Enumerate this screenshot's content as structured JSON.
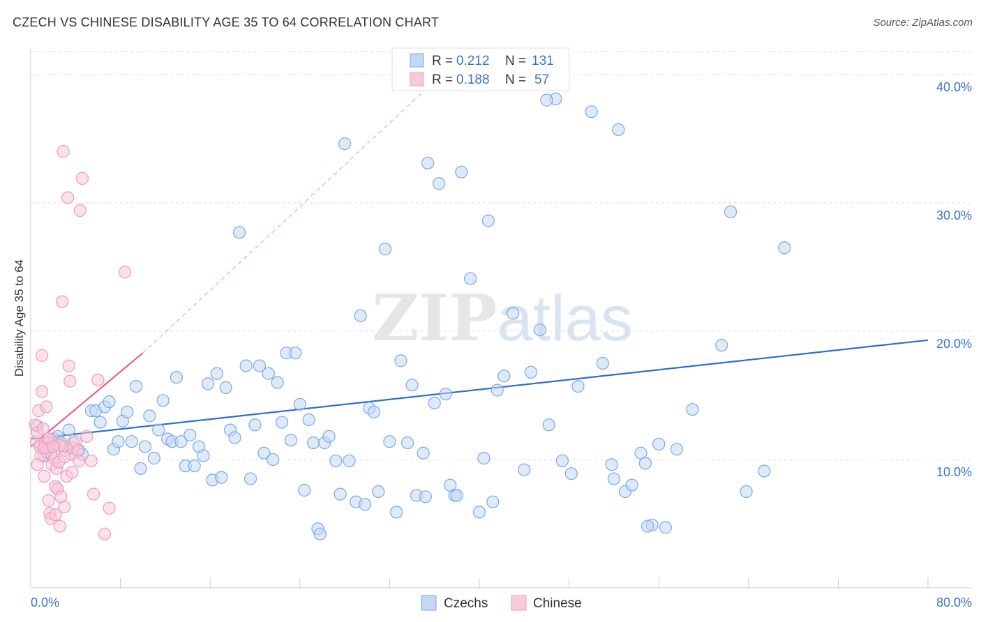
{
  "chart_data": {
    "type": "scatter",
    "title": "CZECH VS CHINESE DISABILITY AGE 35 TO 64 CORRELATION CHART",
    "source": "Source: ZipAtlas.com",
    "ylabel": "Disability Age 35 to 64",
    "xlabel": "",
    "x_tick_labels": [
      "0.0%",
      "80.0%"
    ],
    "y_tick_labels": [
      "10.0%",
      "20.0%",
      "30.0%",
      "40.0%"
    ],
    "y_tick_values": [
      10,
      20,
      30,
      40
    ],
    "xlim": [
      0,
      80
    ],
    "ylim": [
      0,
      42
    ],
    "grid": "horizontal dashed",
    "watermark": "ZIPatlas",
    "legend": {
      "placement": "top-center",
      "entries": [
        {
          "r_label": "R = ",
          "r_value": "0.212",
          "n_label": "N = ",
          "n_value": "131"
        },
        {
          "r_label": "R = ",
          "r_value": "0.188",
          "n_label": "N = ",
          "n_value": "57"
        }
      ]
    },
    "series": [
      {
        "name": "Czechs",
        "color": "#7aa8e3",
        "fill": "#c2d8f5",
        "trend_color": "#2f6fcf",
        "trend": {
          "x0": 0,
          "y0": 11.6,
          "x1": 80,
          "y1": 19.3
        },
        "points": [
          [
            0.6,
            12.6
          ],
          [
            0.9,
            11.2
          ],
          [
            1.2,
            10.3
          ],
          [
            1.6,
            10.9
          ],
          [
            1.8,
            10.4
          ],
          [
            2.1,
            11.6
          ],
          [
            2.4,
            11.8
          ],
          [
            2.7,
            11.3
          ],
          [
            3.1,
            10.7
          ],
          [
            3.4,
            12.3
          ],
          [
            3.8,
            11.3
          ],
          [
            4.3,
            10.7
          ],
          [
            4.6,
            10.4
          ],
          [
            5.4,
            13.8
          ],
          [
            5.8,
            13.8
          ],
          [
            6.2,
            12.9
          ],
          [
            6.6,
            14.1
          ],
          [
            7.0,
            14.5
          ],
          [
            7.4,
            10.8
          ],
          [
            7.8,
            11.4
          ],
          [
            8.2,
            13.0
          ],
          [
            8.6,
            13.7
          ],
          [
            9.0,
            11.4
          ],
          [
            9.4,
            15.7
          ],
          [
            9.8,
            9.3
          ],
          [
            10.2,
            11.0
          ],
          [
            10.6,
            13.4
          ],
          [
            11.0,
            10.1
          ],
          [
            11.4,
            12.3
          ],
          [
            11.8,
            14.6
          ],
          [
            12.2,
            11.6
          ],
          [
            12.6,
            11.4
          ],
          [
            13.0,
            16.4
          ],
          [
            13.4,
            11.4
          ],
          [
            13.8,
            9.5
          ],
          [
            14.2,
            11.9
          ],
          [
            14.6,
            9.5
          ],
          [
            15.0,
            11.0
          ],
          [
            15.4,
            10.3
          ],
          [
            15.8,
            15.9
          ],
          [
            16.2,
            8.4
          ],
          [
            16.6,
            16.7
          ],
          [
            17.0,
            8.6
          ],
          [
            17.4,
            15.6
          ],
          [
            17.8,
            12.3
          ],
          [
            18.2,
            11.7
          ],
          [
            18.6,
            27.7
          ],
          [
            19.2,
            17.3
          ],
          [
            19.6,
            8.5
          ],
          [
            20.0,
            12.7
          ],
          [
            20.4,
            17.3
          ],
          [
            20.8,
            10.5
          ],
          [
            21.2,
            16.7
          ],
          [
            21.6,
            10.0
          ],
          [
            22.0,
            16.0
          ],
          [
            22.4,
            12.9
          ],
          [
            22.8,
            18.3
          ],
          [
            23.2,
            11.5
          ],
          [
            23.6,
            18.3
          ],
          [
            24.0,
            14.3
          ],
          [
            24.4,
            7.6
          ],
          [
            24.8,
            13.1
          ],
          [
            25.2,
            11.3
          ],
          [
            25.6,
            4.6
          ],
          [
            26.2,
            11.3
          ],
          [
            26.6,
            11.8
          ],
          [
            27.2,
            9.9
          ],
          [
            27.6,
            7.3
          ],
          [
            28.0,
            34.6
          ],
          [
            28.4,
            9.9
          ],
          [
            29.0,
            6.7
          ],
          [
            29.4,
            21.2
          ],
          [
            29.8,
            6.5
          ],
          [
            30.2,
            14.0
          ],
          [
            30.6,
            13.7
          ],
          [
            31.0,
            7.5
          ],
          [
            31.6,
            26.4
          ],
          [
            32.0,
            11.4
          ],
          [
            32.6,
            5.9
          ],
          [
            33.0,
            17.7
          ],
          [
            33.6,
            11.3
          ],
          [
            34.0,
            15.8
          ],
          [
            34.4,
            7.2
          ],
          [
            35.0,
            10.5
          ],
          [
            35.4,
            33.1
          ],
          [
            36.0,
            14.4
          ],
          [
            36.4,
            31.5
          ],
          [
            37.0,
            15.1
          ],
          [
            37.4,
            8.0
          ],
          [
            37.8,
            7.2
          ],
          [
            38.4,
            32.4
          ],
          [
            39.2,
            24.1
          ],
          [
            40.0,
            5.9
          ],
          [
            40.4,
            10.1
          ],
          [
            40.8,
            28.6
          ],
          [
            41.2,
            6.7
          ],
          [
            41.6,
            15.4
          ],
          [
            42.2,
            16.5
          ],
          [
            43.0,
            21.4
          ],
          [
            44.0,
            9.2
          ],
          [
            44.6,
            16.8
          ],
          [
            45.4,
            20.1
          ],
          [
            46.2,
            12.7
          ],
          [
            46.8,
            38.1
          ],
          [
            47.4,
            9.9
          ],
          [
            48.2,
            8.9
          ],
          [
            48.8,
            15.7
          ],
          [
            50.0,
            37.1
          ],
          [
            51.0,
            17.5
          ],
          [
            51.8,
            9.6
          ],
          [
            52.4,
            35.7
          ],
          [
            53.0,
            7.5
          ],
          [
            53.6,
            8.0
          ],
          [
            54.4,
            10.5
          ],
          [
            54.8,
            9.7
          ],
          [
            55.4,
            4.9
          ],
          [
            56.0,
            11.2
          ],
          [
            56.6,
            4.7
          ],
          [
            57.6,
            10.8
          ],
          [
            59.0,
            13.9
          ],
          [
            61.6,
            18.9
          ],
          [
            62.4,
            29.3
          ],
          [
            63.8,
            7.5
          ],
          [
            65.4,
            9.1
          ],
          [
            67.2,
            26.5
          ],
          [
            46.0,
            38.0
          ],
          [
            52.0,
            8.5
          ],
          [
            55.0,
            4.8
          ],
          [
            35.2,
            7.1
          ],
          [
            38.0,
            7.2
          ],
          [
            25.8,
            4.2
          ]
        ]
      },
      {
        "name": "Chinese",
        "color": "#f09ab8",
        "fill": "#f8c9d9",
        "trend_color": "#e5608f",
        "trend": {
          "x0": 0,
          "y0": 11.0,
          "x1": 10,
          "y1": 18.3
        },
        "trend_extended": {
          "x0": 10,
          "y0": 18.3,
          "x1": 37.5,
          "y1": 40.7
        },
        "points": [
          [
            0.4,
            12.7
          ],
          [
            0.5,
            11.4
          ],
          [
            0.6,
            12.1
          ],
          [
            0.7,
            13.8
          ],
          [
            0.8,
            11.0
          ],
          [
            0.9,
            10.3
          ],
          [
            1.0,
            18.1
          ],
          [
            1.0,
            15.3
          ],
          [
            1.1,
            12.4
          ],
          [
            1.2,
            8.7
          ],
          [
            1.3,
            11.3
          ],
          [
            1.4,
            14.1
          ],
          [
            1.5,
            10.8
          ],
          [
            1.6,
            6.8
          ],
          [
            1.7,
            5.8
          ],
          [
            1.8,
            5.4
          ],
          [
            1.9,
            9.6
          ],
          [
            2.0,
            11.2
          ],
          [
            2.1,
            10.1
          ],
          [
            2.2,
            7.9
          ],
          [
            2.3,
            9.3
          ],
          [
            2.4,
            7.7
          ],
          [
            2.5,
            9.8
          ],
          [
            2.6,
            4.8
          ],
          [
            2.7,
            7.1
          ],
          [
            2.8,
            22.3
          ],
          [
            2.9,
            34.0
          ],
          [
            3.0,
            6.3
          ],
          [
            3.1,
            11.0
          ],
          [
            3.2,
            8.7
          ],
          [
            3.3,
            30.4
          ],
          [
            3.4,
            17.3
          ],
          [
            3.5,
            16.1
          ],
          [
            3.6,
            10.4
          ],
          [
            3.7,
            9.0
          ],
          [
            3.8,
            10.9
          ],
          [
            4.0,
            11.4
          ],
          [
            4.2,
            10.7
          ],
          [
            4.3,
            9.9
          ],
          [
            4.4,
            29.4
          ],
          [
            4.6,
            31.9
          ],
          [
            5.0,
            11.8
          ],
          [
            5.4,
            9.9
          ],
          [
            5.6,
            7.3
          ],
          [
            6.0,
            16.2
          ],
          [
            6.6,
            4.2
          ],
          [
            7.0,
            6.2
          ],
          [
            8.4,
            24.6
          ],
          [
            1.4,
            10.6
          ],
          [
            1.8,
            11.5
          ],
          [
            2.2,
            5.7
          ],
          [
            2.6,
            11.1
          ],
          [
            3.0,
            10.2
          ],
          [
            0.6,
            9.6
          ],
          [
            1.2,
            10.9
          ],
          [
            1.6,
            11.6
          ],
          [
            2.0,
            11.0
          ]
        ]
      }
    ]
  }
}
